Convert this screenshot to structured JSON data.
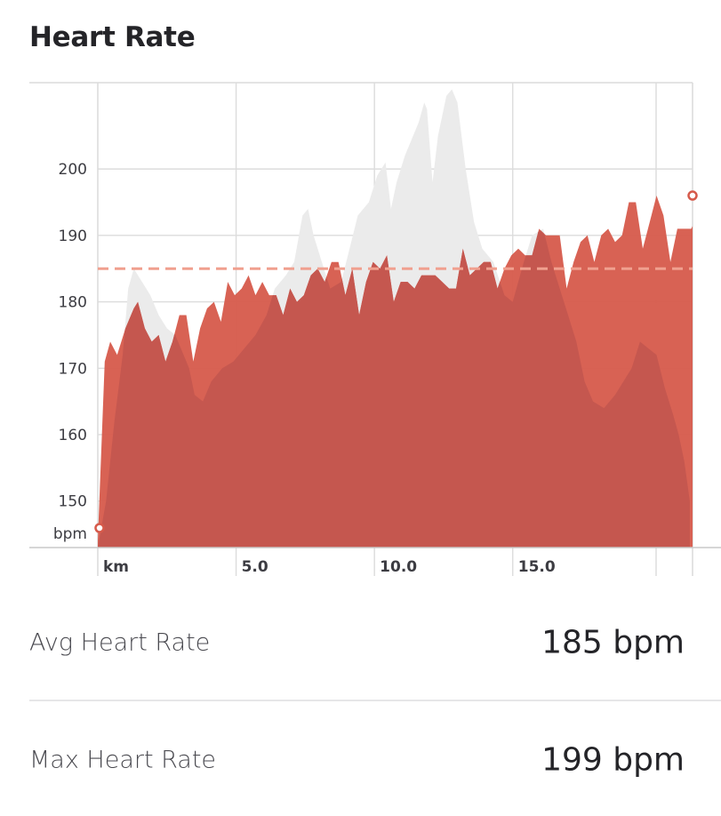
{
  "heading": "Heart Rate",
  "chart_data": {
    "type": "area",
    "title": "Heart Rate",
    "y_unit": "bpm",
    "x_unit": "km",
    "xlim": [
      0,
      21.5
    ],
    "ylim": [
      143,
      213
    ],
    "y_ticks": [
      150,
      160,
      170,
      180,
      190,
      200
    ],
    "x_ticks": [
      5.0,
      10.0,
      15.0
    ],
    "x_tick_labels": [
      "5.0",
      "10.0",
      "15.0"
    ],
    "grid": true,
    "average": 185,
    "colors": {
      "series": "#c5574f",
      "series_light": "#d65a4b",
      "background_series": "#ebebeb",
      "average_line": "#f0a08f"
    },
    "series": [
      {
        "role": "comparison",
        "points": [
          [
            0,
            143
          ],
          [
            0.3,
            150
          ],
          [
            0.6,
            162
          ],
          [
            0.9,
            172
          ],
          [
            1.1,
            182
          ],
          [
            1.3,
            185
          ],
          [
            1.6,
            183
          ],
          [
            1.9,
            181
          ],
          [
            2.2,
            178
          ],
          [
            2.5,
            176
          ],
          [
            2.8,
            175
          ],
          [
            3.1,
            172
          ],
          [
            3.3,
            170
          ],
          [
            3.5,
            166
          ],
          [
            3.8,
            165
          ],
          [
            4.1,
            168
          ],
          [
            4.5,
            170
          ],
          [
            4.9,
            171
          ],
          [
            5.3,
            173
          ],
          [
            5.7,
            175
          ],
          [
            6.1,
            178
          ],
          [
            6.4,
            182
          ],
          [
            6.8,
            184
          ],
          [
            7.1,
            186
          ],
          [
            7.4,
            193
          ],
          [
            7.6,
            194
          ],
          [
            7.8,
            190
          ],
          [
            8.1,
            186
          ],
          [
            8.4,
            182
          ],
          [
            8.8,
            183
          ],
          [
            9.1,
            188
          ],
          [
            9.4,
            193
          ],
          [
            9.8,
            195
          ],
          [
            10.1,
            199
          ],
          [
            10.4,
            201
          ],
          [
            10.6,
            194
          ],
          [
            10.8,
            198
          ],
          [
            11.1,
            202
          ],
          [
            11.4,
            205
          ],
          [
            11.6,
            207
          ],
          [
            11.8,
            210
          ],
          [
            11.9,
            209
          ],
          [
            12.1,
            198
          ],
          [
            12.3,
            205
          ],
          [
            12.6,
            211
          ],
          [
            12.8,
            212
          ],
          [
            13.0,
            210
          ],
          [
            13.3,
            200
          ],
          [
            13.6,
            192
          ],
          [
            13.9,
            188
          ],
          [
            14.3,
            186
          ],
          [
            14.7,
            181
          ],
          [
            15.0,
            180
          ],
          [
            15.4,
            186
          ],
          [
            15.7,
            190
          ],
          [
            16.1,
            191
          ],
          [
            16.4,
            186
          ],
          [
            16.7,
            182
          ],
          [
            17.0,
            178
          ],
          [
            17.3,
            174
          ],
          [
            17.6,
            168
          ],
          [
            17.9,
            165
          ],
          [
            18.3,
            164
          ],
          [
            18.7,
            166
          ],
          [
            19.0,
            168
          ],
          [
            19.3,
            170
          ],
          [
            19.6,
            174
          ],
          [
            19.9,
            173
          ],
          [
            20.2,
            172
          ],
          [
            20.5,
            167
          ],
          [
            20.8,
            163
          ],
          [
            21.0,
            160
          ],
          [
            21.2,
            156
          ],
          [
            21.4,
            150
          ]
        ]
      },
      {
        "role": "primary",
        "points": [
          [
            0,
            144
          ],
          [
            0.25,
            171
          ],
          [
            0.45,
            174
          ],
          [
            0.7,
            172
          ],
          [
            1.0,
            176
          ],
          [
            1.3,
            179
          ],
          [
            1.45,
            180
          ],
          [
            1.7,
            176
          ],
          [
            1.95,
            174
          ],
          [
            2.2,
            175
          ],
          [
            2.45,
            171
          ],
          [
            2.7,
            174
          ],
          [
            2.95,
            178
          ],
          [
            3.2,
            178
          ],
          [
            3.45,
            171
          ],
          [
            3.7,
            176
          ],
          [
            3.95,
            179
          ],
          [
            4.2,
            180
          ],
          [
            4.45,
            177
          ],
          [
            4.7,
            183
          ],
          [
            4.95,
            181
          ],
          [
            5.2,
            182
          ],
          [
            5.45,
            184
          ],
          [
            5.7,
            181
          ],
          [
            5.95,
            183
          ],
          [
            6.2,
            181
          ],
          [
            6.45,
            181
          ],
          [
            6.7,
            178
          ],
          [
            6.95,
            182
          ],
          [
            7.2,
            180
          ],
          [
            7.45,
            181
          ],
          [
            7.7,
            184
          ],
          [
            7.95,
            185
          ],
          [
            8.2,
            183
          ],
          [
            8.45,
            186
          ],
          [
            8.7,
            186
          ],
          [
            8.95,
            181
          ],
          [
            9.2,
            185
          ],
          [
            9.45,
            178
          ],
          [
            9.7,
            183
          ],
          [
            9.95,
            186
          ],
          [
            10.2,
            185
          ],
          [
            10.45,
            187
          ],
          [
            10.7,
            180
          ],
          [
            10.95,
            183
          ],
          [
            11.2,
            183
          ],
          [
            11.45,
            182
          ],
          [
            11.7,
            184
          ],
          [
            11.95,
            184
          ],
          [
            12.2,
            184
          ],
          [
            12.45,
            183
          ],
          [
            12.7,
            182
          ],
          [
            12.95,
            182
          ],
          [
            13.2,
            188
          ],
          [
            13.45,
            184
          ],
          [
            13.7,
            185
          ],
          [
            13.95,
            186
          ],
          [
            14.2,
            186
          ],
          [
            14.45,
            182
          ],
          [
            14.7,
            185
          ],
          [
            14.95,
            187
          ],
          [
            15.2,
            188
          ],
          [
            15.45,
            187
          ],
          [
            15.7,
            187
          ],
          [
            15.95,
            191
          ],
          [
            16.2,
            190
          ],
          [
            16.45,
            190
          ],
          [
            16.7,
            190
          ],
          [
            16.95,
            182
          ],
          [
            17.2,
            186
          ],
          [
            17.45,
            189
          ],
          [
            17.7,
            190
          ],
          [
            17.95,
            186
          ],
          [
            18.2,
            190
          ],
          [
            18.45,
            191
          ],
          [
            18.7,
            189
          ],
          [
            18.95,
            190
          ],
          [
            19.2,
            195
          ],
          [
            19.45,
            195
          ],
          [
            19.7,
            188
          ],
          [
            19.95,
            192
          ],
          [
            20.2,
            196
          ],
          [
            20.45,
            193
          ],
          [
            20.7,
            186
          ],
          [
            20.95,
            191
          ],
          [
            21.2,
            191
          ],
          [
            21.45,
            191
          ],
          [
            21.7,
            193
          ],
          [
            21.95,
            191
          ],
          [
            22.2,
            195
          ],
          [
            22.45,
            195
          ],
          [
            22.7,
            196
          ],
          [
            22.95,
            189
          ],
          [
            23.2,
            194
          ],
          [
            23.45,
            197
          ],
          [
            23.7,
            196
          ]
        ]
      }
    ]
  },
  "stats": {
    "avg_label": "Avg Heart Rate",
    "avg_value": "185 bpm",
    "max_label": "Max Heart Rate",
    "max_value": "199 bpm"
  }
}
